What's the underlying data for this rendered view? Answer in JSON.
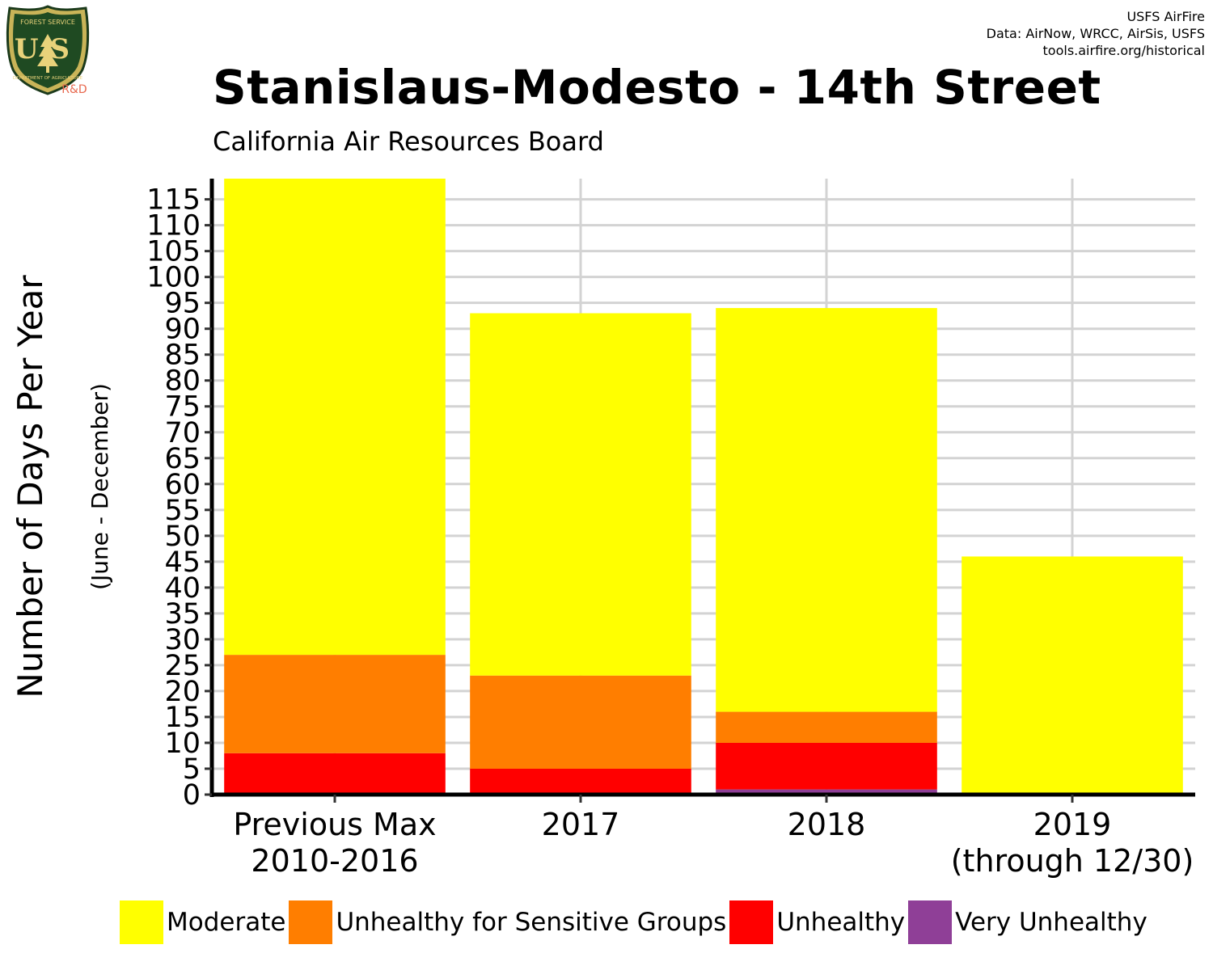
{
  "header": {
    "title": "Stanislaus-Modesto - 14th Street",
    "subtitle": "California Air Resources Board",
    "credits": [
      "USFS AirFire",
      "Data: AirNow, WRCC, AirSis, USFS",
      "tools.airfire.org/historical"
    ]
  },
  "logo": {
    "top_text": "FOREST SERVICE",
    "letters": "US",
    "bottom_text": "DEPARTMENT OF AGRICULTURE",
    "tag": "R&D"
  },
  "colors": {
    "moderate": "#ffff00",
    "usg": "#ff7e00",
    "unhealthy": "#ff0000",
    "very_unhealthy": "#8f3f97"
  },
  "chart_data": {
    "type": "bar",
    "stacked": true,
    "categories": [
      "Previous Max\n2010-2016",
      "2017",
      "2018",
      "2019\n(through 12/30)"
    ],
    "series": [
      {
        "name": "Very Unhealthy",
        "values": [
          0,
          0,
          1,
          0
        ]
      },
      {
        "name": "Unhealthy",
        "values": [
          8,
          5,
          9,
          0
        ]
      },
      {
        "name": "Unhealthy for Sensitive Groups",
        "values": [
          19,
          18,
          6,
          0
        ]
      },
      {
        "name": "Moderate",
        "values": [
          92,
          70,
          78,
          46
        ]
      }
    ],
    "ylabel": "Number of Days Per Year",
    "ylabel_sub": "(June - December)",
    "yticks": [
      0,
      5,
      10,
      15,
      20,
      25,
      30,
      35,
      40,
      45,
      50,
      55,
      60,
      65,
      70,
      75,
      80,
      85,
      90,
      95,
      100,
      105,
      110,
      115
    ],
    "ylim": [
      0,
      119
    ],
    "grid": true,
    "legend_position": "bottom"
  }
}
